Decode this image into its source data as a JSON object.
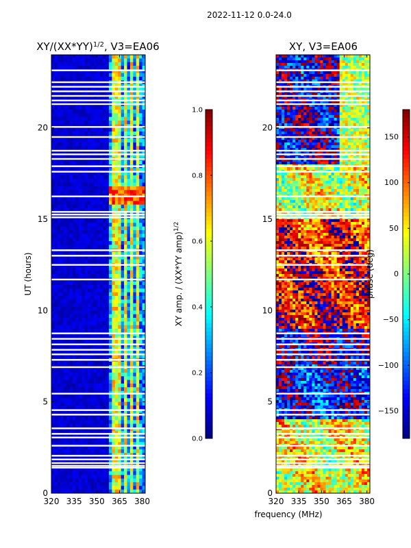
{
  "figure_title": "2022-11-12 0.0-24.0",
  "shared_xlabel": "frequency (MHz)",
  "colors": {
    "jet": [
      "#00007f",
      "#0000ff",
      "#007fff",
      "#00ffff",
      "#7fff7f",
      "#ffff00",
      "#ff7f00",
      "#ff0000",
      "#7f0000"
    ],
    "gap": "#ffffff",
    "frame": "#000000"
  },
  "chart_data": [
    {
      "type": "heatmap",
      "title_main": "XY/(XX*YY)",
      "title_exponent": "1/2",
      "title_suffix": ", V3=EA06",
      "xlabel": "",
      "ylabel": "UT (hours)",
      "xlim": [
        320,
        382
      ],
      "ylim": [
        0,
        24
      ],
      "xticks": [
        320,
        335,
        350,
        365,
        380
      ],
      "yticks": [
        0,
        5,
        10,
        15,
        20
      ],
      "colorbar": {
        "label_main": "XY amp. / (XX*YY amp)",
        "label_exponent": "1/2",
        "range": [
          0.0,
          1.0
        ],
        "ticks": [
          0.0,
          0.2,
          0.4,
          0.6,
          0.8,
          1.0
        ],
        "tick_labels": [
          "0.0",
          "0.2",
          "0.4",
          "0.6",
          "0.8",
          "1.0"
        ]
      },
      "quiet_band_mhz": [
        320,
        359
      ],
      "active_band_mhz": [
        359,
        382
      ],
      "bright_channels_mhz": [
        362,
        365.5,
        369.5,
        373.5,
        377
      ],
      "flare_hours": [
        15.7,
        16.9
      ],
      "gaps_ut_hours": [
        1.4,
        1.5,
        1.65,
        1.85,
        2.05,
        2.6,
        3.05,
        3.25,
        3.55,
        4.3,
        4.55,
        5.45,
        6.9,
        7.3,
        7.6,
        7.85,
        8.15,
        8.45,
        8.75,
        11.7,
        12.5,
        13.0,
        13.3,
        15.1,
        15.25,
        15.4,
        16.25,
        17.6,
        17.9,
        18.3,
        18.55,
        18.75,
        19.5,
        20.05,
        21.3,
        21.5,
        21.75,
        22.0,
        22.25,
        22.5,
        23.15
      ]
    },
    {
      "type": "heatmap",
      "title": "XY, V3=EA06",
      "xlabel": "",
      "ylabel": "",
      "xlim": [
        320,
        382
      ],
      "ylim": [
        0,
        24
      ],
      "xticks": [
        320,
        335,
        350,
        365,
        380
      ],
      "yticks": [
        0,
        5,
        10,
        15,
        20
      ],
      "colorbar": {
        "label": "phase (deg)",
        "range": [
          -180,
          180
        ],
        "ticks": [
          -150,
          -100,
          -50,
          0,
          50,
          100,
          150
        ],
        "tick_labels": [
          "−150",
          "−100",
          "−50",
          "0",
          "50",
          "100",
          "150"
        ]
      },
      "gaps_ut_hours": [
        1.4,
        1.5,
        1.65,
        1.85,
        2.05,
        2.6,
        3.05,
        3.25,
        3.55,
        4.3,
        4.55,
        5.45,
        6.9,
        7.3,
        7.6,
        7.85,
        8.15,
        8.45,
        8.75,
        11.7,
        12.5,
        13.0,
        13.3,
        15.1,
        15.25,
        15.4,
        16.25,
        17.6,
        17.9,
        18.3,
        18.55,
        18.75,
        19.5,
        20.05,
        21.3,
        21.5,
        21.75,
        22.0,
        22.25,
        22.5,
        23.15
      ],
      "phase_profile": [
        {
          "from": 0,
          "to": 4,
          "phase": 40
        },
        {
          "from": 4,
          "to": 7,
          "phase": -130
        },
        {
          "from": 7,
          "to": 9,
          "phase": -160
        },
        {
          "from": 9,
          "to": 12.5,
          "phase": 140
        },
        {
          "from": 12.5,
          "to": 15,
          "phase": 120
        },
        {
          "from": 15,
          "to": 18,
          "phase": 30
        },
        {
          "from": 18,
          "to": 24,
          "phase": -150
        }
      ]
    }
  ]
}
